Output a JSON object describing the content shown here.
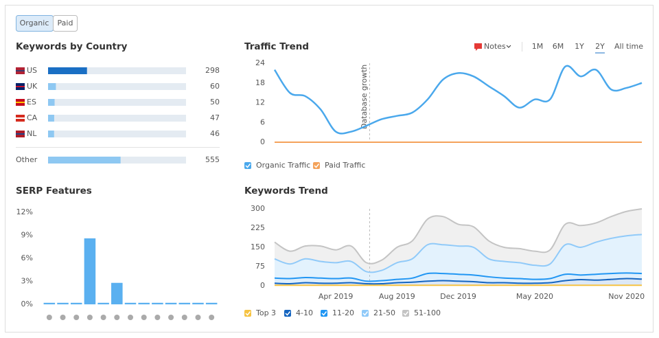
{
  "ui": {
    "tabs": [
      "Organic",
      "Paid"
    ],
    "notes": "Notes",
    "ranges": [
      "1M",
      "6M",
      "1Y",
      "2Y",
      "All time"
    ],
    "active_range": 3
  },
  "chart_data": [
    {
      "type": "hbar",
      "title": "Keywords by Country",
      "categories": [
        "US",
        "UK",
        "ES",
        "CA",
        "NL",
        "Other"
      ],
      "values": [
        298,
        60,
        50,
        47,
        46,
        555
      ],
      "colors": [
        "#1a6fc4",
        "#8ec8f2",
        "#8ec8f2",
        "#8ec8f2",
        "#8ec8f2",
        "#8ec8f2"
      ],
      "xlim": [
        0,
        1056
      ]
    },
    {
      "type": "bar",
      "title": "SERP Features",
      "categories": [
        null,
        null,
        null,
        null,
        null,
        null,
        null,
        null,
        null,
        null,
        null,
        null,
        null
      ],
      "values": [
        0.2,
        0.2,
        0.2,
        8.6,
        0.2,
        2.8,
        0.2,
        0.2,
        0.2,
        0.2,
        0.2,
        0.2,
        0.2
      ],
      "color": "#5ab0f0",
      "ylim": [
        0,
        12
      ],
      "yticks": [
        {
          "value": 0,
          "label": "0%"
        },
        {
          "value": 3,
          "label": "3%"
        },
        {
          "value": 6,
          "label": "6%"
        },
        {
          "value": 9,
          "label": "9%"
        },
        {
          "value": 12,
          "label": "12%"
        }
      ]
    },
    {
      "type": "line",
      "title": "Traffic Trend",
      "annotation": "Database growth",
      "categories": [
        null,
        null,
        null,
        null,
        null,
        null,
        null,
        null,
        null,
        null,
        null,
        null,
        null,
        null,
        null,
        null,
        null,
        null,
        null,
        null,
        null,
        null,
        null,
        null,
        null
      ],
      "series": [
        {
          "name": "Organic Traffic",
          "color": "#4aa8ec",
          "values": [
            22,
            15,
            14,
            10,
            3.2,
            3.2,
            5,
            7,
            8,
            9,
            13,
            19,
            21,
            20,
            17,
            14,
            10.5,
            13,
            13,
            23,
            20,
            22,
            16,
            16.5,
            18
          ]
        },
        {
          "name": "Paid Traffic",
          "color": "#f4a25a",
          "values": [
            0,
            0,
            0,
            0,
            0,
            0,
            0,
            0,
            0,
            0,
            0,
            0,
            0,
            0,
            0,
            0,
            0,
            0,
            0,
            0,
            0,
            0,
            0,
            0,
            0
          ]
        }
      ],
      "ylim": [
        0,
        24
      ],
      "yticks": [
        0,
        6,
        12,
        18,
        24
      ]
    },
    {
      "type": "stacked-area",
      "title": "Keywords Trend",
      "categories": [
        null,
        null,
        null,
        null,
        "Apr 2019",
        null,
        null,
        null,
        "Aug 2019",
        null,
        null,
        null,
        "Dec 2019",
        null,
        null,
        null,
        null,
        "May 2020",
        null,
        null,
        null,
        null,
        null,
        "Nov 2020",
        null
      ],
      "series": [
        {
          "name": "Top 3",
          "color": "#f6c342",
          "values": [
            2,
            2,
            2,
            2,
            2,
            2,
            2,
            2,
            2,
            2,
            2,
            2,
            2,
            2,
            2,
            2,
            2,
            2,
            2,
            2,
            2,
            2,
            2,
            2,
            2
          ]
        },
        {
          "name": "4-10",
          "color": "#1565c0",
          "values": [
            8,
            6,
            10,
            8,
            8,
            10,
            6,
            6,
            10,
            12,
            16,
            18,
            16,
            14,
            10,
            10,
            8,
            8,
            10,
            18,
            22,
            20,
            23,
            26,
            24
          ]
        },
        {
          "name": "11-20",
          "color": "#2196f3",
          "values": [
            20,
            20,
            20,
            20,
            18,
            18,
            10,
            12,
            13,
            16,
            30,
            28,
            27,
            26,
            23,
            18,
            18,
            15,
            16,
            25,
            18,
            23,
            23,
            22,
            22
          ]
        },
        {
          "name": "21-50",
          "color": "#90caf9",
          "values": [
            75,
            57,
            73,
            65,
            62,
            65,
            37,
            40,
            65,
            75,
            112,
            112,
            110,
            108,
            70,
            65,
            62,
            55,
            57,
            115,
            108,
            125,
            137,
            145,
            152
          ]
        },
        {
          "name": "51-100",
          "color": "#c4c4c4",
          "values": [
            65,
            50,
            50,
            60,
            50,
            60,
            35,
            40,
            60,
            70,
            100,
            110,
            85,
            80,
            70,
            55,
            55,
            55,
            55,
            80,
            85,
            75,
            85,
            95,
            100
          ]
        }
      ],
      "ylim": [
        0,
        300
      ],
      "yticks": [
        0,
        75,
        150,
        225,
        300
      ]
    }
  ]
}
